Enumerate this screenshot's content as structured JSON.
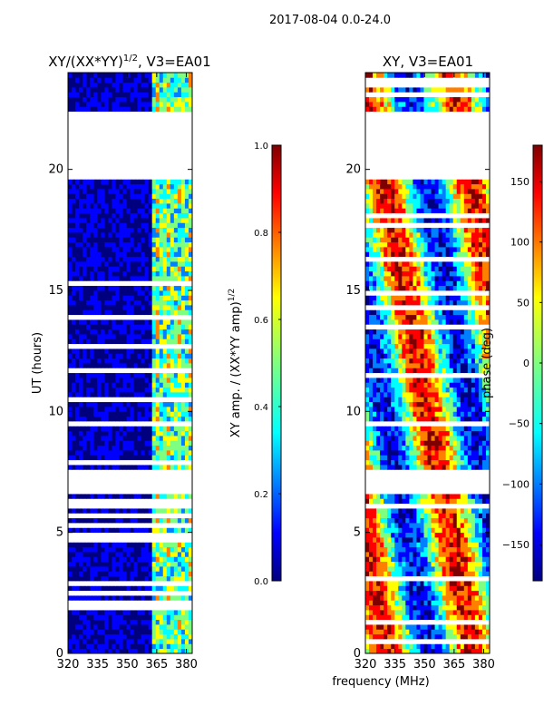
{
  "figure": {
    "suptitle": "2017-08-04 0.0-24.0",
    "shared_xlabel": "frequency (MHz)"
  },
  "chart_data": [
    {
      "type": "heatmap",
      "title_main": "XY/(XX*YY)",
      "title_exp": "1/2",
      "title_suffix": ", V3=EA01",
      "xlabel": "frequency (MHz)",
      "ylabel": "UT (hours)",
      "xlim": [
        320,
        383
      ],
      "ylim": [
        0,
        24
      ],
      "xticks": [
        320,
        335,
        350,
        365,
        380
      ],
      "yticks": [
        0,
        5,
        10,
        15,
        20
      ],
      "colorbar": {
        "label_main": "XY amp. / (XX*YY amp)",
        "label_exp": "1/2",
        "range": [
          0.0,
          1.0
        ],
        "ticks": [
          "0.0",
          "0.2",
          "0.4",
          "0.6",
          "0.8",
          "1.0"
        ],
        "tick_values": [
          0.0,
          0.2,
          0.4,
          0.6,
          0.8,
          1.0
        ],
        "colormap": "jet"
      },
      "missing_data_hours": [
        [
          7.5,
          6.7
        ],
        [
          19.6,
          22.4
        ]
      ],
      "description": "amplitude mostly low (~0.05) below 363 MHz; elevated 0.4-0.8 in vertical stripes between 363 and 383 MHz"
    },
    {
      "type": "heatmap",
      "title_main": "XY, V3=EA01",
      "xlim": [
        320,
        383
      ],
      "ylim": [
        0,
        24
      ],
      "xticks": [
        320,
        335,
        350,
        365,
        380
      ],
      "yticks": [
        0,
        5,
        10,
        15,
        20
      ],
      "colorbar": {
        "label_main": "phase (deg)",
        "range": [
          -180,
          180
        ],
        "ticks": [
          "−150",
          "−100",
          "−50",
          "0",
          "50",
          "100",
          "150"
        ],
        "tick_values": [
          -150,
          -100,
          -50,
          0,
          50,
          100,
          150
        ],
        "colormap": "jet"
      },
      "missing_data_hours": [
        [
          7.5,
          6.7
        ],
        [
          19.6,
          22.4
        ]
      ],
      "description": "phase varies across full range with vertical banding near 335, 350 and 365 MHz"
    }
  ],
  "colors": {
    "jet": [
      "#00007f",
      "#0000ff",
      "#007fff",
      "#00ffff",
      "#7fff7f",
      "#ffff00",
      "#ff7f00",
      "#ff0000",
      "#7f0000"
    ],
    "background": "#ffffff",
    "axes": "#000000"
  }
}
